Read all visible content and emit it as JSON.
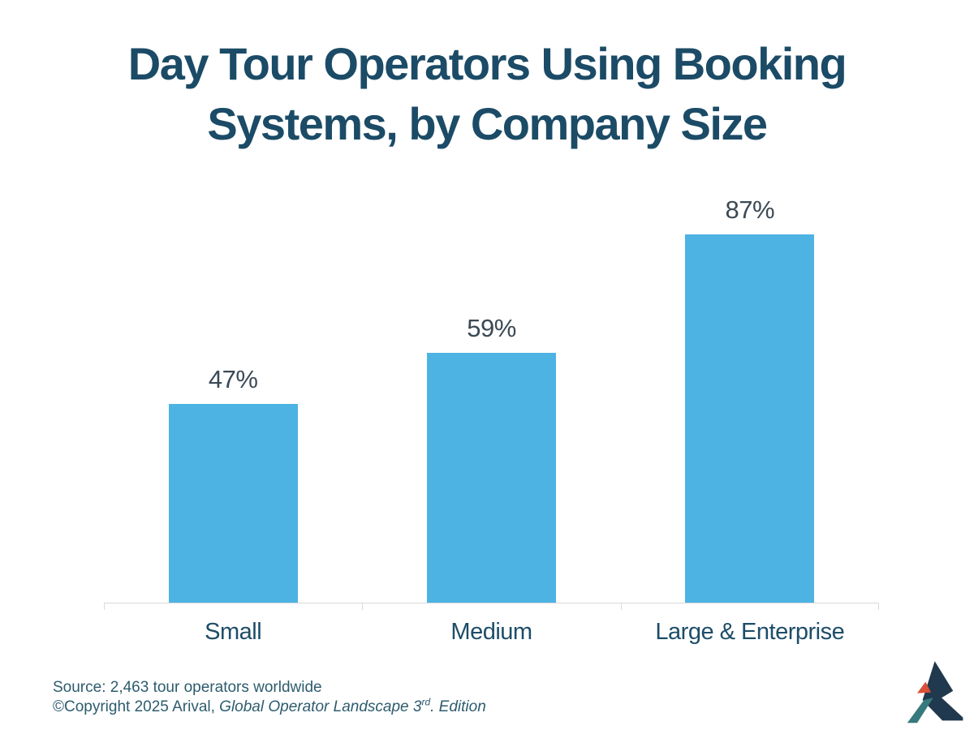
{
  "title": {
    "line1": "Day Tour Operators Using Booking",
    "line2": "Systems, by Company Size"
  },
  "chart_data": {
    "type": "bar",
    "title": "Day Tour Operators Using Booking Systems, by Company Size",
    "categories": [
      "Small",
      "Medium",
      "Large & Enterprise"
    ],
    "values": [
      47,
      59,
      87
    ],
    "value_labels": [
      "47%",
      "59%",
      "87%"
    ],
    "xlabel": "",
    "ylabel": "",
    "ylim": [
      0,
      100
    ],
    "unit": "%",
    "grid": false,
    "legend": false,
    "bar_color": "#4db3e3"
  },
  "footer": {
    "source_line": "Source: 2,463 tour operators worldwide",
    "copyright_prefix": "©Copyright 2025 Arival, ",
    "copyright_italic_title": "Global Operator Landscape 3",
    "copyright_superscript": "rd",
    "copyright_italic_suffix": ". Edition"
  },
  "colors": {
    "bg": "#ffffff",
    "title_color": "#1b4b66",
    "value_color": "#3b4a55",
    "category_color": "#1d4d68",
    "axis_color": "#d9d9d9",
    "source_color": "#2d5c6e",
    "bar_color": "#4db3e3",
    "logo_navy": "#20394e",
    "logo_red": "#d94f38",
    "logo_teal": "#377a7d"
  }
}
